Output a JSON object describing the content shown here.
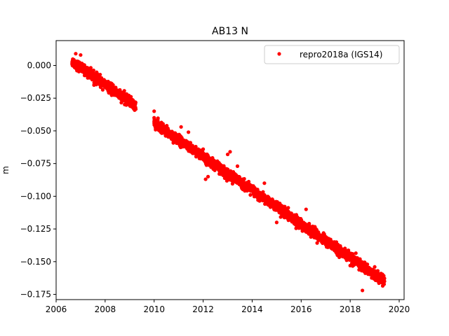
{
  "chart_data": {
    "type": "scatter",
    "title": "AB13 N",
    "xlabel": "",
    "ylabel": "m",
    "xlim": [
      2006.0,
      2020.2
    ],
    "ylim": [
      -0.179,
      0.019
    ],
    "xticks": [
      2006,
      2008,
      2010,
      2012,
      2014,
      2016,
      2018,
      2020
    ],
    "xtick_labels": [
      "2006",
      "2008",
      "2010",
      "2012",
      "2014",
      "2016",
      "2018",
      "2020"
    ],
    "yticks": [
      0.0,
      -0.025,
      -0.05,
      -0.075,
      -0.1,
      -0.125,
      -0.15,
      -0.175
    ],
    "ytick_labels": [
      "0.000",
      "−0.025",
      "−0.050",
      "−0.075",
      "−0.100",
      "−0.125",
      "−0.150",
      "−0.175"
    ],
    "legend": {
      "position": "top-right",
      "entries": [
        "repro2018a (IGS14)"
      ]
    },
    "grid": false,
    "series": [
      {
        "name": "repro2018a (IGS14)",
        "color": "#ff0000",
        "marker": "circle",
        "segments": [
          {
            "x_start": 2006.65,
            "x_end": 2009.25,
            "y_start": 0.003,
            "y_end": -0.031
          },
          {
            "x_start": 2010.0,
            "x_end": 2019.4,
            "y_start": -0.044,
            "y_end": -0.165
          }
        ],
        "points": [
          [
            2006.7,
            0.004
          ],
          [
            2006.9,
            0.001
          ],
          [
            2007.1,
            -0.002
          ],
          [
            2007.3,
            -0.003
          ],
          [
            2007.5,
            -0.006
          ],
          [
            2007.7,
            -0.008
          ],
          [
            2007.9,
            -0.011
          ],
          [
            2008.1,
            -0.014
          ],
          [
            2008.3,
            -0.016
          ],
          [
            2008.5,
            -0.019
          ],
          [
            2008.7,
            -0.022
          ],
          [
            2008.9,
            -0.025
          ],
          [
            2009.1,
            -0.028
          ],
          [
            2009.2,
            -0.031
          ],
          [
            2010.0,
            -0.035
          ],
          [
            2010.0,
            -0.04
          ],
          [
            2010.0,
            -0.044
          ],
          [
            2010.3,
            -0.049
          ],
          [
            2010.6,
            -0.052
          ],
          [
            2010.9,
            -0.055
          ],
          [
            2011.2,
            -0.058
          ],
          [
            2011.5,
            -0.061
          ],
          [
            2011.8,
            -0.064
          ],
          [
            2012.1,
            -0.068
          ],
          [
            2012.4,
            -0.072
          ],
          [
            2012.7,
            -0.076
          ],
          [
            2013.0,
            -0.08
          ],
          [
            2013.3,
            -0.083
          ],
          [
            2013.6,
            -0.087
          ],
          [
            2013.9,
            -0.091
          ],
          [
            2014.2,
            -0.095
          ],
          [
            2014.5,
            -0.099
          ],
          [
            2014.8,
            -0.104
          ],
          [
            2015.1,
            -0.108
          ],
          [
            2015.4,
            -0.112
          ],
          [
            2015.7,
            -0.116
          ],
          [
            2016.0,
            -0.119
          ],
          [
            2016.3,
            -0.122
          ],
          [
            2016.6,
            -0.125
          ],
          [
            2016.9,
            -0.129
          ],
          [
            2017.2,
            -0.133
          ],
          [
            2017.5,
            -0.137
          ],
          [
            2017.8,
            -0.141
          ],
          [
            2018.1,
            -0.144
          ],
          [
            2018.4,
            -0.148
          ],
          [
            2018.7,
            -0.152
          ],
          [
            2019.0,
            -0.157
          ],
          [
            2019.3,
            -0.163
          ],
          [
            2006.8,
            0.009
          ],
          [
            2007.0,
            0.008
          ],
          [
            2011.1,
            -0.047
          ],
          [
            2011.4,
            -0.051
          ],
          [
            2012.0,
            -0.064
          ],
          [
            2012.1,
            -0.087
          ],
          [
            2012.2,
            -0.085
          ],
          [
            2013.0,
            -0.068
          ],
          [
            2013.1,
            -0.066
          ],
          [
            2013.4,
            -0.077
          ],
          [
            2014.5,
            -0.09
          ],
          [
            2015.0,
            -0.12
          ],
          [
            2015.6,
            -0.113
          ],
          [
            2016.2,
            -0.11
          ],
          [
            2017.0,
            -0.137
          ],
          [
            2018.0,
            -0.153
          ],
          [
            2018.4,
            -0.156
          ],
          [
            2018.5,
            -0.172
          ],
          [
            2019.0,
            -0.154
          ],
          [
            2017.6,
            -0.142
          ]
        ]
      }
    ]
  }
}
